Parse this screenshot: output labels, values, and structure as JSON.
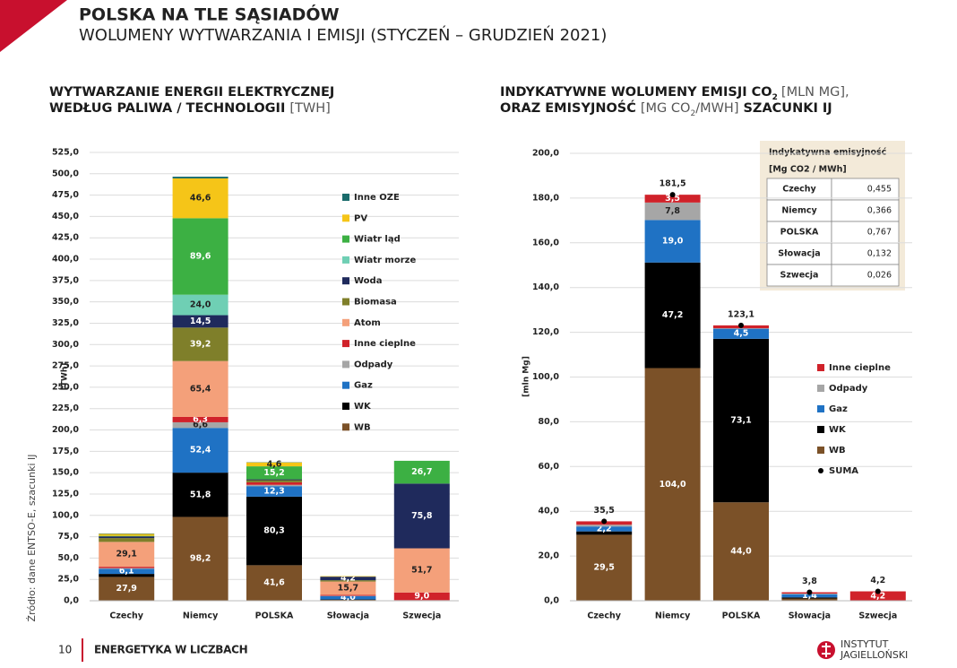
{
  "page": {
    "title": "POLSKA NA TLE SĄSIADÓW",
    "subtitle": "WOLUMENY WYTWARZANIA I EMISJI (STYCZEŃ – GRUDZIEŃ 2021)",
    "page_number": "10",
    "footer": "ENERGETYKA W LICZBACH",
    "source": "Źródło: dane ENTSO-E, szacunki IJ",
    "logo": [
      "INSTYTUT",
      "JAGIELLOŃSKI"
    ]
  },
  "chart_data": [
    {
      "type": "bar",
      "stacked": true,
      "title": [
        "WYTWARZANIE ENERGII ELEKTRYCZNEJ",
        "WEDŁUG PALIWA / TECHNOLOGII"
      ],
      "title_unit": "[TWH]",
      "y_label": "[TWh]",
      "categories": [
        "Czechy",
        "Niemcy",
        "POLSKA",
        "Słowacja",
        "Szwecja"
      ],
      "ylim": [
        0,
        525
      ],
      "yticks": [
        {
          "value": 0,
          "label": "0,0"
        },
        {
          "value": 25,
          "label": "25,0"
        },
        {
          "value": 50,
          "label": "50,0"
        },
        {
          "value": 75,
          "label": "75,0"
        },
        {
          "value": 100,
          "label": "100,0"
        },
        {
          "value": 125,
          "label": "125,0"
        },
        {
          "value": 150,
          "label": "150,0"
        },
        {
          "value": 175,
          "label": "175,0"
        },
        {
          "value": 200,
          "label": "200,0"
        },
        {
          "value": 225,
          "label": "225,0"
        },
        {
          "value": 250,
          "label": "250,0"
        },
        {
          "value": 275,
          "label": "275,0"
        },
        {
          "value": 300,
          "label": "300,0"
        },
        {
          "value": 325,
          "label": "325,0"
        },
        {
          "value": 350,
          "label": "350,0"
        },
        {
          "value": 375,
          "label": "375,0"
        },
        {
          "value": 400,
          "label": "400,0"
        },
        {
          "value": 425,
          "label": "425,0"
        },
        {
          "value": 450,
          "label": "450,0"
        },
        {
          "value": 475,
          "label": "475,0"
        },
        {
          "value": 500,
          "label": "500,0"
        },
        {
          "value": 525,
          "label": "525,0"
        }
      ],
      "grid": true,
      "series": [
        {
          "name": "WB",
          "color": "#7b5128",
          "values": [
            27.9,
            98.2,
            41.6,
            1.0,
            0
          ],
          "value_labels": [
            "27,9",
            "98,2",
            "41,6",
            null,
            null
          ]
        },
        {
          "name": "WK",
          "color": "#000000",
          "values": [
            3.5,
            51.8,
            80.3,
            0.5,
            0
          ],
          "value_labels": [
            null,
            "51,8",
            "80,3",
            null,
            null
          ]
        },
        {
          "name": "Gaz",
          "color": "#1f72c4",
          "values": [
            6.1,
            52.4,
            12.3,
            4.0,
            0.2
          ],
          "value_labels": [
            "6,1",
            "52,4",
            "12,3",
            "4,0",
            null
          ]
        },
        {
          "name": "Odpady",
          "color": "#a6a6a6",
          "values": [
            0.8,
            6.6,
            1.5,
            0.3,
            0.5
          ],
          "value_labels": [
            null,
            "6,6",
            null,
            null,
            null
          ]
        },
        {
          "name": "Inne cieplne",
          "color": "#d0222a",
          "values": [
            1.5,
            6.3,
            3.0,
            1.0,
            9.0
          ],
          "value_labels": [
            null,
            "6,3",
            null,
            null,
            "9,0"
          ]
        },
        {
          "name": "Atom",
          "color": "#f4a07a",
          "values": [
            29.1,
            65.4,
            0,
            15.7,
            51.7
          ],
          "value_labels": [
            "29,1",
            "65,4",
            null,
            "15,7",
            "51,7"
          ]
        },
        {
          "name": "Biomasa",
          "color": "#7f7f2a",
          "values": [
            4.5,
            39.2,
            2.5,
            1.5,
            0
          ],
          "value_labels": [
            null,
            "39,2",
            null,
            null,
            null
          ]
        },
        {
          "name": "Woda",
          "color": "#1f2a5c",
          "values": [
            2.0,
            14.5,
            1.0,
            4.2,
            75.8
          ],
          "value_labels": [
            null,
            "14,5",
            null,
            "4,2",
            "75,8"
          ]
        },
        {
          "name": "Wiatr morze",
          "color": "#6fcfb4",
          "values": [
            0,
            24.0,
            0,
            0,
            0
          ],
          "value_labels": [
            null,
            "24,0",
            null,
            null,
            null
          ]
        },
        {
          "name": "Wiatr ląd",
          "color": "#3cb043",
          "values": [
            0.6,
            89.6,
            15.2,
            0,
            26.7
          ],
          "value_labels": [
            null,
            "89,6",
            "15,2",
            null,
            "26,7"
          ]
        },
        {
          "name": "PV",
          "color": "#f5c518",
          "values": [
            2.2,
            46.6,
            4.6,
            0.6,
            0
          ],
          "value_labels": [
            null,
            "46,6",
            "4,6",
            null,
            null
          ]
        },
        {
          "name": "Inne OZE",
          "color": "#1a6b6b",
          "values": [
            0.5,
            2.0,
            0.3,
            0,
            0
          ],
          "value_labels": [
            null,
            null,
            null,
            null,
            null
          ]
        }
      ]
    },
    {
      "type": "bar",
      "stacked": true,
      "title": [
        "INDYKATYWNE WOLUMENY EMISJI CO",
        "ORAZ EMISYJNOŚĆ",
        "SZACUNKI IJ"
      ],
      "title_units": [
        "[MLN MG],",
        "[MG CO",
        "/MWH]"
      ],
      "title_subscript": "2",
      "y_label": "[mln Mg]",
      "categories": [
        "Czechy",
        "Niemcy",
        "POLSKA",
        "Słowacja",
        "Szwecja"
      ],
      "ylim": [
        0,
        200
      ],
      "yticks": [
        {
          "value": 0,
          "label": "0,0"
        },
        {
          "value": 20,
          "label": "20,0"
        },
        {
          "value": 40,
          "label": "40,0"
        },
        {
          "value": 60,
          "label": "60,0"
        },
        {
          "value": 80,
          "label": "80,0"
        },
        {
          "value": 100,
          "label": "100,0"
        },
        {
          "value": 120,
          "label": "120,0"
        },
        {
          "value": 140,
          "label": "140,0"
        },
        {
          "value": 160,
          "label": "160,0"
        },
        {
          "value": 180,
          "label": "180,0"
        },
        {
          "value": 200,
          "label": "200,0"
        }
      ],
      "grid": true,
      "series": [
        {
          "name": "WB",
          "color": "#7b5128",
          "values": [
            29.5,
            104.0,
            44.0,
            1.0,
            0
          ],
          "value_labels": [
            "29,5",
            "104,0",
            "44,0",
            null,
            null
          ]
        },
        {
          "name": "WK",
          "color": "#000000",
          "values": [
            1.5,
            47.2,
            73.1,
            0.5,
            0
          ],
          "value_labels": [
            null,
            "47,2",
            "73,1",
            null,
            null
          ]
        },
        {
          "name": "Gaz",
          "color": "#1f72c4",
          "values": [
            2.2,
            19.0,
            4.5,
            1.4,
            0
          ],
          "value_labels": [
            "2,2",
            "19,0",
            "4,5",
            "1,4",
            null
          ]
        },
        {
          "name": "Odpady",
          "color": "#a6a6a6",
          "values": [
            0.8,
            7.8,
            0.2,
            0.3,
            0
          ],
          "value_labels": [
            null,
            "7,8",
            null,
            null,
            null
          ]
        },
        {
          "name": "Inne cieplne",
          "color": "#d0222a",
          "values": [
            1.5,
            3.5,
            1.3,
            0.6,
            4.2
          ],
          "value_labels": [
            null,
            "3,5",
            null,
            null,
            "4,2"
          ]
        }
      ],
      "totals": {
        "name": "SUMA",
        "color": "#000000",
        "values": [
          35.5,
          181.5,
          123.1,
          3.8,
          4.2
        ],
        "value_labels": [
          "35,5",
          "181,5",
          "123,1",
          "3,8",
          "4,2"
        ]
      },
      "table": {
        "title": "Indykatywna emisyjność",
        "unit": "[Mg CO2 / MWh]",
        "rows": [
          [
            "Czechy",
            "0,455"
          ],
          [
            "Niemcy",
            "0,366"
          ],
          [
            "POLSKA",
            "0,767"
          ],
          [
            "Słowacja",
            "0,132"
          ],
          [
            "Szwecja",
            "0,026"
          ]
        ]
      }
    }
  ]
}
